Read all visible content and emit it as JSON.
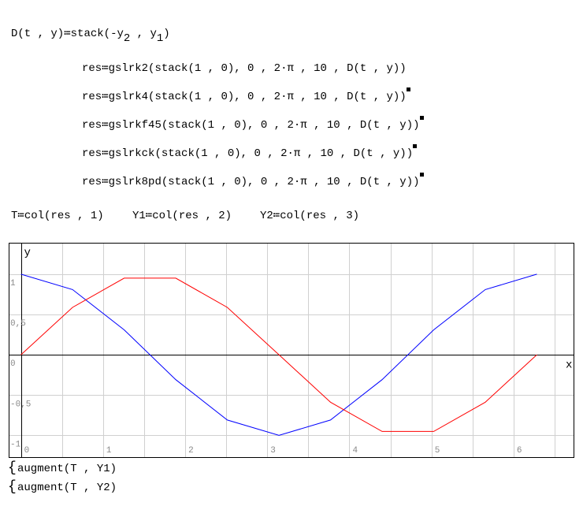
{
  "definition": {
    "lhs": "D(t , y)",
    "assign": "≔",
    "rhs_prefix": "stack(-y",
    "sub1": "2",
    "mid": " , y",
    "sub2": "1",
    "rhs_suffix": ")"
  },
  "solvers": [
    {
      "text": "res≔gslrk2(stack(1 , 0), 0 , 2·π , 10 , D(t , y))",
      "disabled": false
    },
    {
      "text": "res≔gslrk4(stack(1 , 0), 0 , 2·π , 10 , D(t , y))",
      "disabled": true
    },
    {
      "text": "res≔gslrkf45(stack(1 , 0), 0 , 2·π , 10 , D(t , y))",
      "disabled": true
    },
    {
      "text": "res≔gslrkck(stack(1 , 0), 0 , 2·π , 10 , D(t , y))",
      "disabled": true
    },
    {
      "text": "res≔gslrk8pd(stack(1 , 0), 0 , 2·π , 10 , D(t , y))",
      "disabled": true
    }
  ],
  "columns": {
    "t": "T≔col(res , 1)",
    "y1": "Y1≔col(res , 2)",
    "y2": "Y2≔col(res , 3)"
  },
  "plot_expressions": [
    "augment(T , Y1)",
    "augment(T , Y2)"
  ],
  "chart_data": {
    "type": "line",
    "xlabel": "x",
    "ylabel": "y",
    "xlim": [
      -0.15,
      6.73
    ],
    "ylim": [
      -1.27,
      1.39
    ],
    "grid": true,
    "x_ticks": [
      "0",
      "1",
      "2",
      "3",
      "4",
      "5",
      "6"
    ],
    "y_ticks": [
      "1",
      "0,5",
      "0",
      "-0,5",
      "-1"
    ],
    "x": [
      0,
      0.628,
      1.257,
      1.885,
      2.513,
      3.142,
      3.77,
      4.398,
      5.027,
      5.655,
      6.283
    ],
    "series": [
      {
        "color": "#0000ff",
        "values": [
          1,
          0.809,
          0.309,
          -0.309,
          -0.809,
          -1,
          -0.809,
          -0.309,
          0.309,
          0.809,
          1
        ]
      },
      {
        "color": "#ff0000",
        "values": [
          0,
          0.588,
          0.951,
          0.951,
          0.588,
          0,
          -0.588,
          -0.951,
          -0.951,
          -0.588,
          0
        ]
      }
    ]
  }
}
